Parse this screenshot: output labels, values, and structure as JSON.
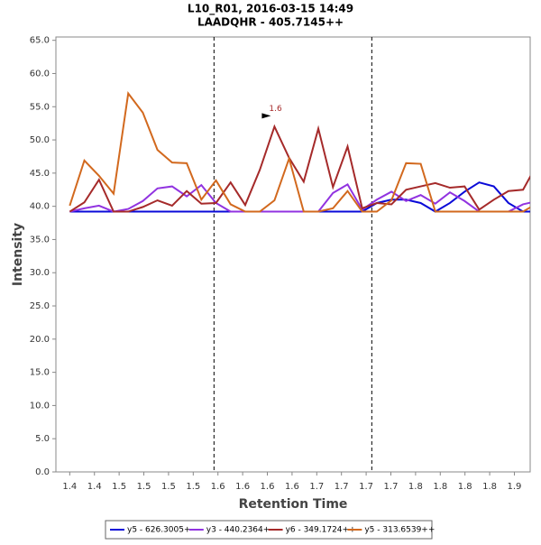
{
  "chart_data": {
    "type": "line",
    "title": "L10_R01, 2016-03-15 14:49",
    "subtitle": "LAADQHR - 405.7145++",
    "x_label": "Retention Time",
    "y_label": "Intensity",
    "x": [
      1.4,
      1.4148,
      1.4296,
      1.4444,
      1.4592,
      1.474,
      1.4888,
      1.5036,
      1.5184,
      1.5332,
      1.548,
      1.5628,
      1.5776,
      1.5924,
      1.6072,
      1.622,
      1.6368,
      1.6516,
      1.6664,
      1.6812,
      1.696,
      1.7108,
      1.7256,
      1.7404,
      1.7552,
      1.77,
      1.7848,
      1.7996,
      1.8144,
      1.8292,
      1.844,
      1.8588,
      1.8736
    ],
    "series": [
      {
        "name": "y5 - 626.3005+",
        "color": "#0a0ad8",
        "values": [
          39.2,
          39.2,
          39.2,
          39.2,
          39.2,
          39.2,
          39.2,
          39.2,
          39.2,
          39.2,
          39.2,
          39.2,
          39.2,
          39.2,
          39.2,
          39.2,
          39.2,
          39.2,
          39.2,
          39.2,
          39.2,
          40.5,
          41,
          41,
          40.5,
          39.2,
          40.5,
          42.2,
          43.6,
          43,
          40.5,
          39.2,
          39.2
        ]
      },
      {
        "name": "y3 - 440.2364+",
        "color": "#9133e0",
        "values": [
          39.2,
          39.7,
          40.1,
          39.2,
          39.6,
          40.8,
          42.7,
          43,
          41.5,
          43.2,
          40.5,
          39.2,
          39.2,
          39.2,
          39.2,
          39.2,
          39.2,
          39.2,
          42,
          43.3,
          39.5,
          41,
          42.2,
          40.8,
          41.7,
          40.4,
          42.1,
          40.8,
          39.2,
          39.2,
          39.2,
          40.3,
          40.8
        ]
      },
      {
        "name": "y6 - 349.1724++",
        "color": "#a52a2a",
        "values": [
          39.2,
          40.6,
          44,
          39.2,
          39.2,
          39.9,
          40.9,
          40.1,
          42.3,
          40.4,
          40.5,
          43.6,
          40.2,
          45.5,
          52,
          47.3,
          43.7,
          51.7,
          42.9,
          49,
          39.7,
          40.5,
          40.3,
          42.5,
          43,
          43.5,
          42.8,
          43,
          39.5,
          41,
          42.3,
          42.5,
          46.5
        ]
      },
      {
        "name": "y5 - 313.6539++",
        "color": "#d2691e",
        "values": [
          40.1,
          46.9,
          44.6,
          41.9,
          57,
          54.1,
          48.5,
          46.6,
          46.5,
          41,
          43.9,
          40.3,
          39.2,
          39.2,
          40.9,
          47.2,
          39.2,
          39.2,
          39.7,
          42.3,
          39.2,
          39.2,
          40.9,
          46.5,
          46.4,
          39.2,
          39.2,
          39.2,
          39.2,
          39.2,
          39.2,
          39.2,
          40.5
        ]
      }
    ],
    "xlim": [
      1.386,
      1.866
    ],
    "ylim": [
      0,
      65.5
    ],
    "xticks": [
      {
        "value": 1.4,
        "label": "1.4"
      },
      {
        "value": 1.425,
        "label": "1.4"
      },
      {
        "value": 1.45,
        "label": "1.5"
      },
      {
        "value": 1.475,
        "label": "1.5"
      },
      {
        "value": 1.5,
        "label": "1.5"
      },
      {
        "value": 1.525,
        "label": "1.5"
      },
      {
        "value": 1.55,
        "label": "1.6"
      },
      {
        "value": 1.575,
        "label": "1.6"
      },
      {
        "value": 1.6,
        "label": "1.6"
      },
      {
        "value": 1.625,
        "label": "1.6"
      },
      {
        "value": 1.65,
        "label": "1.7"
      },
      {
        "value": 1.675,
        "label": "1.7"
      },
      {
        "value": 1.7,
        "label": "1.7"
      },
      {
        "value": 1.725,
        "label": "1.7"
      },
      {
        "value": 1.75,
        "label": "1.8"
      },
      {
        "value": 1.775,
        "label": "1.8"
      },
      {
        "value": 1.8,
        "label": "1.8"
      },
      {
        "value": 1.825,
        "label": "1.8"
      },
      {
        "value": 1.85,
        "label": "1.9"
      }
    ],
    "yticks": [
      {
        "value": 0,
        "label": "0.0"
      },
      {
        "value": 5,
        "label": "5.0"
      },
      {
        "value": 10,
        "label": "10.0"
      },
      {
        "value": 15,
        "label": "15.0"
      },
      {
        "value": 20,
        "label": "20.0"
      },
      {
        "value": 25,
        "label": "25.0"
      },
      {
        "value": 30,
        "label": "30.0"
      },
      {
        "value": 35,
        "label": "35.0"
      },
      {
        "value": 40,
        "label": "40.0"
      },
      {
        "value": 45,
        "label": "45.0"
      },
      {
        "value": 50,
        "label": "50.0"
      },
      {
        "value": 55,
        "label": "55.0"
      },
      {
        "value": 60,
        "label": "60.0"
      },
      {
        "value": 65,
        "label": "65.0"
      }
    ],
    "vlines": [
      1.546,
      1.7057
    ],
    "annotation": {
      "text": "1.6",
      "x": 1.6072,
      "y": 52
    },
    "legend": "bottom"
  }
}
